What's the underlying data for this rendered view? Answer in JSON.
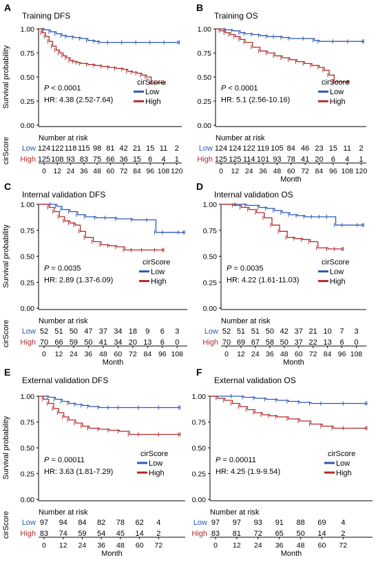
{
  "figure_label": "Kaplan-Meier survival curves by cirScore",
  "colors": {
    "low": "#2c57b3",
    "high": "#b22a2a",
    "axis": "#000000"
  },
  "chart_data": [
    {
      "type": "line",
      "panel": "A",
      "title": "Training DFS",
      "ylabel": "Survival probability",
      "xlabel": "",
      "xticks": [
        0,
        12,
        24,
        36,
        48,
        60,
        72,
        84,
        96,
        108,
        120
      ],
      "yticks": [
        "1.00",
        "0.75",
        "0.50",
        "0.25",
        "0.00"
      ],
      "xlim": [
        0,
        122
      ],
      "ylim": [
        0,
        1
      ],
      "legend": {
        "title": "cirScore",
        "placement": "right",
        "entries": [
          "Low",
          "High"
        ]
      },
      "p_value": "< 0.0001",
      "hr": "HR: 4.38 (2.52-7.64)",
      "series": [
        {
          "name": "Low",
          "color": "#2c57b3",
          "x": [
            0,
            5,
            10,
            15,
            20,
            24,
            30,
            36,
            42,
            48,
            52,
            60,
            72,
            84,
            96,
            108,
            120
          ],
          "y": [
            1.0,
            0.99,
            0.97,
            0.95,
            0.93,
            0.92,
            0.91,
            0.9,
            0.88,
            0.87,
            0.86,
            0.86,
            0.86,
            0.86,
            0.86,
            0.86,
            0.86
          ]
        },
        {
          "name": "High",
          "color": "#b22a2a",
          "x": [
            0,
            3,
            6,
            9,
            12,
            15,
            18,
            21,
            24,
            27,
            30,
            33,
            36,
            42,
            48,
            54,
            60,
            66,
            72,
            76,
            80,
            84,
            88,
            92,
            96,
            100,
            108
          ],
          "y": [
            1.0,
            0.96,
            0.92,
            0.87,
            0.82,
            0.78,
            0.75,
            0.72,
            0.7,
            0.67,
            0.66,
            0.65,
            0.64,
            0.63,
            0.62,
            0.61,
            0.6,
            0.59,
            0.58,
            0.56,
            0.55,
            0.54,
            0.52,
            0.5,
            0.44,
            0.44,
            0.44
          ]
        }
      ],
      "risk_table": {
        "title": "Number at risk",
        "row_label": "cirScore",
        "x": [
          0,
          12,
          24,
          36,
          48,
          60,
          72,
          84,
          96,
          108,
          120
        ],
        "rows": [
          {
            "name": "Low",
            "values": [
              "124",
              "122",
              "118",
              "115",
              "98",
              "81",
              "42",
              "21",
              "15",
              "11",
              "2"
            ]
          },
          {
            "name": "High",
            "values": [
              "125",
              "108",
              "93",
              "83",
              "75",
              "66",
              "36",
              "15",
              "6",
              "4",
              "1"
            ]
          }
        ]
      }
    },
    {
      "type": "line",
      "panel": "B",
      "title": "Training OS",
      "ylabel": "",
      "xlabel": "Month",
      "xticks": [
        0,
        12,
        24,
        36,
        48,
        60,
        72,
        84,
        96,
        108,
        120
      ],
      "yticks": [
        "1.00",
        "0.75",
        "0.50",
        "0.25",
        "0.00"
      ],
      "xlim": [
        0,
        122
      ],
      "ylim": [
        0,
        1
      ],
      "legend": {
        "title": "cirScore",
        "placement": "right",
        "entries": [
          "Low",
          "High"
        ]
      },
      "p_value": "< 0.0001",
      "hr": "HR: 5.1 (2.56-10.16)",
      "series": [
        {
          "name": "Low",
          "color": "#2c57b3",
          "x": [
            0,
            8,
            14,
            20,
            24,
            30,
            36,
            42,
            48,
            54,
            60,
            72,
            80,
            84,
            96,
            108,
            120
          ],
          "y": [
            1.0,
            0.99,
            0.98,
            0.96,
            0.95,
            0.94,
            0.93,
            0.92,
            0.92,
            0.91,
            0.9,
            0.9,
            0.88,
            0.87,
            0.87,
            0.87,
            0.87
          ]
        },
        {
          "name": "High",
          "color": "#b22a2a",
          "x": [
            0,
            4,
            8,
            12,
            16,
            20,
            24,
            30,
            36,
            42,
            48,
            54,
            60,
            66,
            72,
            78,
            84,
            88,
            92,
            96,
            100,
            108
          ],
          "y": [
            1.0,
            0.98,
            0.96,
            0.94,
            0.92,
            0.89,
            0.86,
            0.81,
            0.77,
            0.75,
            0.72,
            0.7,
            0.68,
            0.66,
            0.64,
            0.62,
            0.6,
            0.57,
            0.52,
            0.45,
            0.45,
            0.45
          ]
        }
      ],
      "risk_table": {
        "title": "Number at risk",
        "row_label": "",
        "x": [
          0,
          12,
          24,
          36,
          48,
          60,
          72,
          84,
          96,
          108,
          120
        ],
        "rows": [
          {
            "name": "Low",
            "values": [
              "124",
              "124",
              "122",
              "119",
              "105",
              "84",
              "46",
              "23",
              "15",
              "11",
              "2"
            ]
          },
          {
            "name": "High",
            "values": [
              "125",
              "125",
              "114",
              "101",
              "93",
              "78",
              "41",
              "20",
              "6",
              "4",
              "1"
            ]
          }
        ]
      }
    },
    {
      "type": "line",
      "panel": "C",
      "title": "Internal validation DFS",
      "ylabel": "Survival probability",
      "xlabel": "Month",
      "xticks": [
        0,
        12,
        24,
        36,
        48,
        60,
        72,
        84,
        96,
        108
      ],
      "yticks": [
        "1.00",
        "0.75",
        "0.50",
        "0.25",
        "0.00"
      ],
      "xlim": [
        0,
        114
      ],
      "ylim": [
        0,
        1
      ],
      "legend": {
        "title": "cirScore",
        "placement": "right",
        "entries": [
          "Low",
          "High"
        ]
      },
      "p_value": "= 0.0035",
      "hr": "HR: 2.89 (1.37-6.09)",
      "series": [
        {
          "name": "Low",
          "color": "#2c57b3",
          "x": [
            0,
            10,
            14,
            18,
            24,
            30,
            36,
            44,
            52,
            60,
            72,
            84,
            90,
            96,
            108,
            112
          ],
          "y": [
            1.0,
            1.0,
            0.98,
            0.95,
            0.93,
            0.9,
            0.88,
            0.87,
            0.87,
            0.86,
            0.85,
            0.85,
            0.73,
            0.73,
            0.73,
            0.73
          ]
        },
        {
          "name": "High",
          "color": "#b22a2a",
          "x": [
            0,
            8,
            12,
            16,
            20,
            24,
            28,
            32,
            36,
            42,
            48,
            54,
            60,
            66,
            72,
            80,
            90,
            96
          ],
          "y": [
            1.0,
            0.97,
            0.93,
            0.88,
            0.84,
            0.82,
            0.8,
            0.74,
            0.68,
            0.64,
            0.61,
            0.6,
            0.59,
            0.56,
            0.56,
            0.56,
            0.56,
            0.56
          ]
        }
      ],
      "risk_table": {
        "title": "Number at risk",
        "row_label": "cirScore",
        "x": [
          0,
          12,
          24,
          36,
          48,
          60,
          72,
          84,
          96,
          108
        ],
        "rows": [
          {
            "name": "Low",
            "values": [
              "52",
              "51",
              "50",
              "47",
              "37",
              "34",
              "18",
              "9",
              "6",
              "3"
            ]
          },
          {
            "name": "High",
            "values": [
              "70",
              "66",
              "59",
              "50",
              "41",
              "34",
              "20",
              "13",
              "6",
              "0"
            ]
          }
        ]
      }
    },
    {
      "type": "line",
      "panel": "D",
      "title": "Internal validation OS",
      "ylabel": "",
      "xlabel": "Month",
      "xticks": [
        0,
        12,
        24,
        36,
        48,
        60,
        72,
        84,
        96,
        108
      ],
      "yticks": [
        "1.00",
        "0.75",
        "0.50",
        "0.25",
        "0.00"
      ],
      "xlim": [
        0,
        114
      ],
      "ylim": [
        0,
        1
      ],
      "legend": {
        "title": "cirScore",
        "placement": "right",
        "entries": [
          "Low",
          "High"
        ]
      },
      "p_value": "= 0.0035",
      "hr": "HR: 4.22 (1.61-11.03)",
      "series": [
        {
          "name": "Low",
          "color": "#2c57b3",
          "x": [
            0,
            12,
            20,
            30,
            36,
            42,
            48,
            54,
            60,
            66,
            72,
            78,
            84,
            90,
            96,
            108,
            112
          ],
          "y": [
            1.0,
            1.0,
            0.99,
            0.97,
            0.96,
            0.94,
            0.92,
            0.9,
            0.89,
            0.88,
            0.88,
            0.88,
            0.88,
            0.8,
            0.8,
            0.8,
            0.8
          ]
        },
        {
          "name": "High",
          "color": "#b22a2a",
          "x": [
            0,
            10,
            16,
            22,
            28,
            34,
            40,
            46,
            52,
            58,
            64,
            70,
            76,
            84,
            90,
            96
          ],
          "y": [
            1.0,
            0.99,
            0.97,
            0.95,
            0.92,
            0.87,
            0.8,
            0.74,
            0.68,
            0.67,
            0.66,
            0.64,
            0.58,
            0.57,
            0.57,
            0.57
          ]
        }
      ],
      "risk_table": {
        "title": "Number at risk",
        "row_label": "",
        "x": [
          0,
          12,
          24,
          36,
          48,
          60,
          72,
          84,
          96,
          108
        ],
        "rows": [
          {
            "name": "Low",
            "values": [
              "52",
              "51",
              "51",
              "50",
              "42",
              "37",
              "21",
              "10",
              "7",
              "3"
            ]
          },
          {
            "name": "High",
            "values": [
              "70",
              "69",
              "67",
              "58",
              "50",
              "37",
              "22",
              "13",
              "6",
              "0"
            ]
          }
        ]
      }
    },
    {
      "type": "line",
      "panel": "E",
      "title": "External validation DFS",
      "ylabel": "Survival probability",
      "xlabel": "Month",
      "xticks": [
        0,
        12,
        24,
        36,
        48,
        60,
        72
      ],
      "yticks": [
        "1.00",
        "0.75",
        "0.50",
        "0.25",
        "0.00"
      ],
      "xlim": [
        0,
        87
      ],
      "ylim": [
        0,
        1
      ],
      "legend": {
        "title": "cirScore",
        "placement": "right",
        "entries": [
          "Low",
          "High"
        ]
      },
      "p_value": "= 0.00011",
      "hr": "HR: 3.63 (1.81-7.29)",
      "series": [
        {
          "name": "Low",
          "color": "#2c57b3",
          "x": [
            0,
            6,
            10,
            14,
            18,
            22,
            26,
            30,
            36,
            42,
            48,
            60,
            72,
            84
          ],
          "y": [
            1.0,
            0.99,
            0.97,
            0.95,
            0.93,
            0.92,
            0.91,
            0.9,
            0.89,
            0.89,
            0.89,
            0.89,
            0.89,
            0.89
          ]
        },
        {
          "name": "High",
          "color": "#b22a2a",
          "x": [
            0,
            3,
            6,
            9,
            12,
            15,
            18,
            22,
            26,
            30,
            36,
            42,
            48,
            54,
            60,
            72,
            84
          ],
          "y": [
            1.0,
            0.97,
            0.93,
            0.88,
            0.84,
            0.8,
            0.77,
            0.74,
            0.71,
            0.69,
            0.68,
            0.67,
            0.66,
            0.63,
            0.63,
            0.63,
            0.63
          ]
        }
      ],
      "risk_table": {
        "title": "Number at risk",
        "row_label": "cirScore",
        "x": [
          0,
          12,
          24,
          36,
          48,
          60,
          72
        ],
        "rows": [
          {
            "name": "Low",
            "values": [
              "97",
              "94",
              "84",
              "82",
              "78",
              "62",
              "4"
            ]
          },
          {
            "name": "High",
            "values": [
              "83",
              "74",
              "59",
              "54",
              "45",
              "14",
              "2"
            ]
          }
        ]
      }
    },
    {
      "type": "line",
      "panel": "F",
      "title": "External validation OS",
      "ylabel": "",
      "xlabel": "Month",
      "xticks": [
        0,
        12,
        24,
        36,
        48,
        60,
        72
      ],
      "yticks": [
        "1.00",
        "0.75",
        "0.50",
        "0.25",
        "0.00"
      ],
      "xlim": [
        0,
        87
      ],
      "ylim": [
        0,
        1
      ],
      "legend": {
        "title": "cirScore",
        "placement": "right",
        "entries": [
          "Low",
          "High"
        ]
      },
      "p_value": "= 0.00011",
      "hr": "HR: 4.25 (1.9-9.54)",
      "series": [
        {
          "name": "Low",
          "color": "#2c57b3",
          "x": [
            0,
            12,
            18,
            24,
            30,
            36,
            42,
            48,
            54,
            60,
            72,
            84
          ],
          "y": [
            1.0,
            1.0,
            0.99,
            0.98,
            0.97,
            0.96,
            0.95,
            0.94,
            0.93,
            0.93,
            0.93,
            0.93
          ]
        },
        {
          "name": "High",
          "color": "#b22a2a",
          "x": [
            0,
            4,
            8,
            12,
            16,
            20,
            24,
            28,
            32,
            36,
            42,
            48,
            54,
            60,
            66,
            72,
            84
          ],
          "y": [
            1.0,
            0.98,
            0.96,
            0.93,
            0.9,
            0.87,
            0.84,
            0.82,
            0.81,
            0.8,
            0.78,
            0.76,
            0.73,
            0.71,
            0.69,
            0.69,
            0.69
          ]
        }
      ],
      "risk_table": {
        "title": "Number at risk",
        "row_label": "",
        "x": [
          0,
          12,
          24,
          36,
          48,
          60,
          72
        ],
        "rows": [
          {
            "name": "Low",
            "values": [
              "97",
              "97",
              "93",
              "91",
              "88",
              "69",
              "4"
            ]
          },
          {
            "name": "High",
            "values": [
              "83",
              "81",
              "72",
              "65",
              "50",
              "14",
              "2"
            ]
          }
        ]
      }
    }
  ]
}
